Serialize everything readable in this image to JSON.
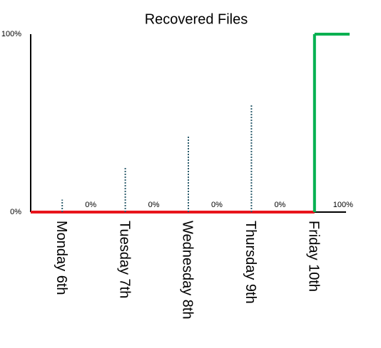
{
  "chart_data": {
    "type": "step",
    "title": "Recovered Files",
    "categories": [
      "Monday 6th",
      "Tuesday 7th",
      "Wednesday 8th",
      "Thursday 9th",
      "Friday 10th"
    ],
    "series": [
      {
        "values": [
          0,
          0,
          0,
          0,
          100
        ],
        "value_labels": [
          "0%",
          "0%",
          "0%",
          "0%",
          "100%"
        ],
        "colors": [
          "#e8141c",
          "#e8141c",
          "#e8141c",
          "#e8141c",
          "#00b050"
        ]
      },
      {
        "values": [
          7,
          25,
          43,
          60,
          null
        ],
        "color": "#2e5e6e",
        "style": "dotted"
      }
    ],
    "ylim": [
      0,
      100
    ],
    "yticks": [
      {
        "value": 0,
        "label": "0%"
      },
      {
        "value": 100,
        "label": "100%"
      }
    ]
  }
}
